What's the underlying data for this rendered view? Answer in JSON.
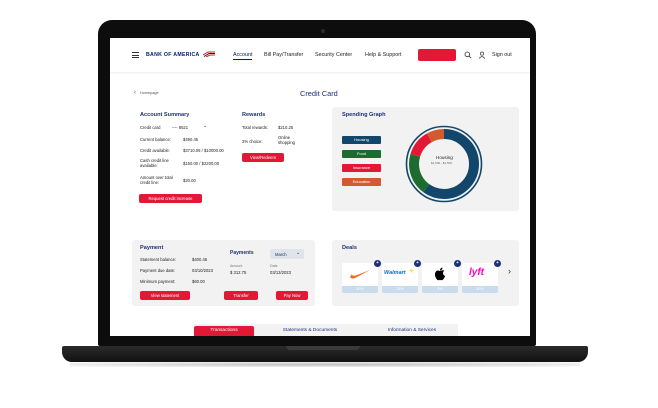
{
  "nav": {
    "logo": "BANK OF AMERICA",
    "links": [
      "Account",
      "Bill Pay/Transfer",
      "Security Center",
      "Help & Support"
    ],
    "sign_out": "Sign out"
  },
  "breadcrumb": "Homepage",
  "page_title": "Credit Card",
  "account_summary": {
    "title": "Account Summary",
    "card_label": "Credit card",
    "card_number": "---- 8521",
    "rows": [
      {
        "label": "Current balance:",
        "value": "$490.45"
      },
      {
        "label": "Credit available:",
        "value": "$3710.09 / $10000.00"
      },
      {
        "label": "Cash credit line available:",
        "value": "$150.00 / $2200.00"
      },
      {
        "label": "Amount over total credit line:",
        "value": "$20.00"
      }
    ],
    "button": "Request credit increase"
  },
  "rewards": {
    "title": "Rewards",
    "rows": [
      {
        "label": "Total rewards:",
        "value": "$210.25"
      },
      {
        "label": "3% choice:",
        "value": "Online shopping"
      }
    ],
    "button": "View/Redeem"
  },
  "spending": {
    "title": "Spending Graph",
    "legend": [
      {
        "label": "Housing",
        "color": "#12466b"
      },
      {
        "label": "Food",
        "color": "#1e6b30"
      },
      {
        "label": "Insurance",
        "color": "#e31837"
      },
      {
        "label": "Education",
        "color": "#d35a2c"
      }
    ],
    "center_label": "Housing",
    "center_sub": "$1,500 - $1,500"
  },
  "payment": {
    "title": "Payment",
    "rows": [
      {
        "label": "Statement balance:",
        "value": "$400.45"
      },
      {
        "label": "Payment due date:",
        "value": "03/10/2023"
      },
      {
        "label": "Minimum payment:",
        "value": "$60.00"
      }
    ],
    "payments_label": "Payments",
    "month": "March",
    "amount_label": "Amount",
    "amount_value": "$ 312.75",
    "date_label": "Date",
    "date_value": "03/13/2023",
    "buttons": [
      "View statement",
      "Transfer",
      "Pay Now"
    ]
  },
  "deals": {
    "title": "Deals",
    "items": [
      {
        "brand": "Nike",
        "pct": "10%"
      },
      {
        "brand": "Walmart",
        "pct": "15%"
      },
      {
        "brand": "Apple",
        "pct": "5%"
      },
      {
        "brand": "lyft",
        "pct": "10%"
      }
    ]
  },
  "tabs": [
    "Transactions",
    "Statements & Documents",
    "Information & Services"
  ]
}
